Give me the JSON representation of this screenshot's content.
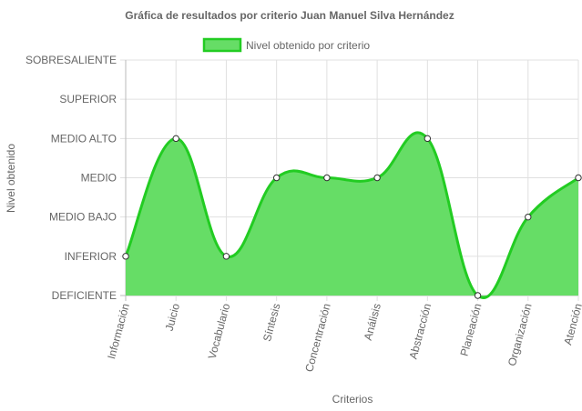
{
  "chart_data": {
    "type": "area",
    "title": "Gráfica de resultados por criterio Juan Manuel Silva Hernández",
    "xlabel": "Criterios",
    "ylabel": "Nivel obtenido",
    "y_levels": [
      "DEFICIENTE",
      "INFERIOR",
      "MEDIO BAJO",
      "MEDIO",
      "MEDIO ALTO",
      "SUPERIOR",
      "SOBRESALIENTE"
    ],
    "ylim": [
      0,
      6
    ],
    "categories": [
      "Información",
      "Juicio",
      "Vocabulario",
      "Síntesis",
      "Concentración",
      "Análisis",
      "Abstracción",
      "Planeación",
      "Organización",
      "Atención"
    ],
    "series": [
      {
        "name": "Nivel obtenido por criterio",
        "values": [
          1,
          4,
          1,
          3,
          3,
          3,
          4,
          0,
          2,
          3
        ]
      }
    ],
    "colors": {
      "fill": "#66dd66",
      "stroke": "#22cc22",
      "grid": "#e0e0e0",
      "axis": "#999999"
    },
    "grid": true,
    "legend_position": "top"
  }
}
